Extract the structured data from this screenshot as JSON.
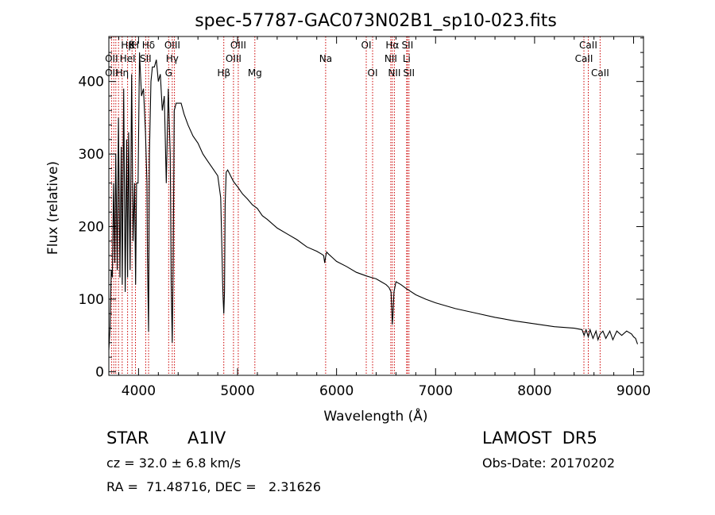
{
  "chart_data": {
    "type": "line",
    "title": "spec-57787-GAC073N02B1_sp10-023.fits",
    "xlabel": "Wavelength (Å)",
    "ylabel": "Flux (relative)",
    "xlim": [
      3700,
      9100
    ],
    "ylim": [
      -5,
      462
    ],
    "x_ticks": [
      4000,
      5000,
      6000,
      7000,
      8000,
      9000
    ],
    "x_tick_labels": [
      "4000",
      "5000",
      "6000",
      "7000",
      "8000",
      "9000"
    ],
    "y_ticks": [
      0,
      100,
      200,
      300,
      400
    ],
    "y_tick_labels": [
      "0",
      "100",
      "200",
      "300",
      "400"
    ],
    "grid": false,
    "series": [
      {
        "x": [
          3700,
          3712,
          3724,
          3735,
          3748,
          3760,
          3770,
          3785,
          3797,
          3812,
          3825,
          3836,
          3850,
          3865,
          3880,
          3889,
          3900,
          3915,
          3930,
          3945,
          3960,
          3970,
          3980,
          3995,
          4010,
          4030,
          4050,
          4070,
          4085,
          4090,
          4101,
          4110,
          4125,
          4140,
          4160,
          4180,
          4200,
          4220,
          4240,
          4260,
          4280,
          4300,
          4320,
          4330,
          4340,
          4350,
          4360,
          4380,
          4400,
          4430,
          4460,
          4500,
          4550,
          4600,
          4650,
          4700,
          4750,
          4800,
          4830,
          4840,
          4850,
          4855,
          4861,
          4868,
          4875,
          4885,
          4900,
          4930,
          4960,
          5000,
          5050,
          5100,
          5150,
          5200,
          5250,
          5300,
          5400,
          5500,
          5600,
          5700,
          5800,
          5850,
          5870,
          5880,
          5889,
          5895,
          5900,
          5920,
          5960,
          6000,
          6100,
          6200,
          6300,
          6350,
          6400,
          6450,
          6500,
          6530,
          6550,
          6558,
          6563,
          6570,
          6580,
          6600,
          6650,
          6700,
          6800,
          6900,
          7000,
          7200,
          7400,
          7600,
          7800,
          8000,
          8200,
          8400,
          8480,
          8500,
          8520,
          8542,
          8560,
          8590,
          8620,
          8640,
          8662,
          8690,
          8720,
          8760,
          8790,
          8830,
          8880,
          8930,
          8980,
          9000,
          9020,
          9040
        ],
        "y": [
          30,
          60,
          140,
          130,
          260,
          150,
          300,
          140,
          350,
          130,
          310,
          120,
          390,
          110,
          320,
          130,
          330,
          140,
          410,
          180,
          260,
          120,
          260,
          260,
          440,
          380,
          390,
          330,
          260,
          160,
          55,
          300,
          400,
          420,
          420,
          430,
          400,
          410,
          360,
          380,
          260,
          390,
          300,
          120,
          40,
          150,
          360,
          370,
          370,
          370,
          355,
          340,
          325,
          315,
          300,
          290,
          280,
          270,
          240,
          180,
          120,
          100,
          80,
          110,
          230,
          275,
          278,
          270,
          262,
          255,
          245,
          238,
          230,
          225,
          215,
          210,
          198,
          190,
          182,
          172,
          166,
          162,
          160,
          150,
          158,
          162,
          165,
          162,
          157,
          152,
          145,
          137,
          132,
          130,
          128,
          124,
          120,
          116,
          110,
          85,
          65,
          80,
          110,
          124,
          120,
          115,
          106,
          100,
          95,
          87,
          81,
          75,
          70,
          66,
          62,
          60,
          58,
          50,
          58,
          48,
          58,
          46,
          56,
          44,
          52,
          56,
          46,
          56,
          44,
          56,
          50,
          56,
          52,
          48,
          46,
          38
        ]
      }
    ],
    "annotations": [
      {
        "x": 3934,
        "label": "K",
        "row": 1
      },
      {
        "x": 3969,
        "label": "H",
        "row": 1
      },
      {
        "x": 3889,
        "label": "Hβ",
        "row": 1
      },
      {
        "x": 4101,
        "label": "Hδ",
        "row": 1
      },
      {
        "x": 4341,
        "label": "OIII",
        "row": 1
      },
      {
        "x": 5007,
        "label": "OIII",
        "row": 1
      },
      {
        "x": 6300,
        "label": "OI",
        "row": 1
      },
      {
        "x": 6563,
        "label": "Hα",
        "row": 1
      },
      {
        "x": 6716,
        "label": "SII",
        "row": 1
      },
      {
        "x": 8542,
        "label": "CaII",
        "row": 1
      },
      {
        "x": 3727,
        "label": "OII",
        "row": 2
      },
      {
        "x": 3889,
        "label": "HeI",
        "row": 2
      },
      {
        "x": 4072,
        "label": "SII",
        "row": 2
      },
      {
        "x": 4340,
        "label": "Hγ",
        "row": 2
      },
      {
        "x": 4959,
        "label": "OIII",
        "row": 2
      },
      {
        "x": 5890,
        "label": "Na",
        "row": 2
      },
      {
        "x": 6548,
        "label": "NII",
        "row": 2
      },
      {
        "x": 6708,
        "label": "Li",
        "row": 2
      },
      {
        "x": 8498,
        "label": "CaII",
        "row": 2
      },
      {
        "x": 3727,
        "label": "OII",
        "row": 3
      },
      {
        "x": 3835,
        "label": "Hη",
        "row": 3
      },
      {
        "x": 4304,
        "label": "G",
        "row": 3
      },
      {
        "x": 4861,
        "label": "Hβ",
        "row": 3
      },
      {
        "x": 5175,
        "label": "Mg",
        "row": 3
      },
      {
        "x": 6364,
        "label": "OI",
        "row": 3
      },
      {
        "x": 6584,
        "label": "NII",
        "row": 3
      },
      {
        "x": 6731,
        "label": "SII",
        "row": 3
      },
      {
        "x": 8662,
        "label": "CaII",
        "row": 3
      }
    ],
    "line_markers": [
      3727,
      3750,
      3771,
      3798,
      3835,
      3889,
      3934,
      3969,
      4072,
      4101,
      4304,
      4340,
      4363,
      4861,
      4959,
      5007,
      5175,
      5890,
      6300,
      6364,
      6548,
      6563,
      6584,
      6708,
      6716,
      6731,
      8498,
      8542,
      8662
    ],
    "colors": {
      "spectrum": "#000000",
      "markers": "#cc0000"
    }
  },
  "info": {
    "object": "STAR",
    "subclass": "A1IV",
    "survey": "LAMOST  DR5",
    "cz": "cz = 32.0 ± 6.8 km/s",
    "obs_date": "Obs-Date: 20170202",
    "coords": "RA =  71.48716, DEC =   2.31626"
  }
}
